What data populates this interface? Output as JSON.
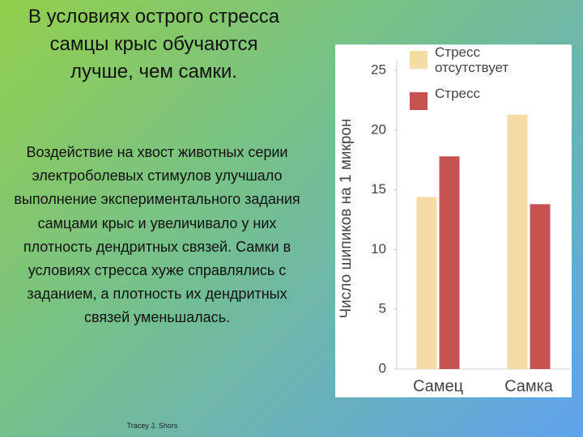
{
  "slide": {
    "title": "В условиях острого стресса самцы крыс обучаются лучше, чем самки.",
    "body": "Воздействие на хвост животных серии электроболевых стимулов улучшало выполнение экспериментального задания самцами крыс и увеличивало у них плотность дендритных связей. Самки в условиях стресса хуже справлялись с заданием, а плотность их дендритных связей уменьшалась.",
    "credit": "Tracey J. Shors"
  },
  "chart_data": {
    "type": "bar",
    "y_label": "Число шипиков на 1 микрон",
    "categories": [
      "Самец",
      "Самка"
    ],
    "series": [
      {
        "name": "Стресс отсутствует",
        "color": "#f5dba6",
        "values": [
          14.4,
          21.3
        ]
      },
      {
        "name": "Стресс",
        "color": "#c65252",
        "values": [
          17.8,
          13.8
        ]
      }
    ],
    "ylim": [
      0,
      25
    ],
    "yticks": [
      0,
      5,
      10,
      15,
      20,
      25
    ],
    "grid": false
  }
}
